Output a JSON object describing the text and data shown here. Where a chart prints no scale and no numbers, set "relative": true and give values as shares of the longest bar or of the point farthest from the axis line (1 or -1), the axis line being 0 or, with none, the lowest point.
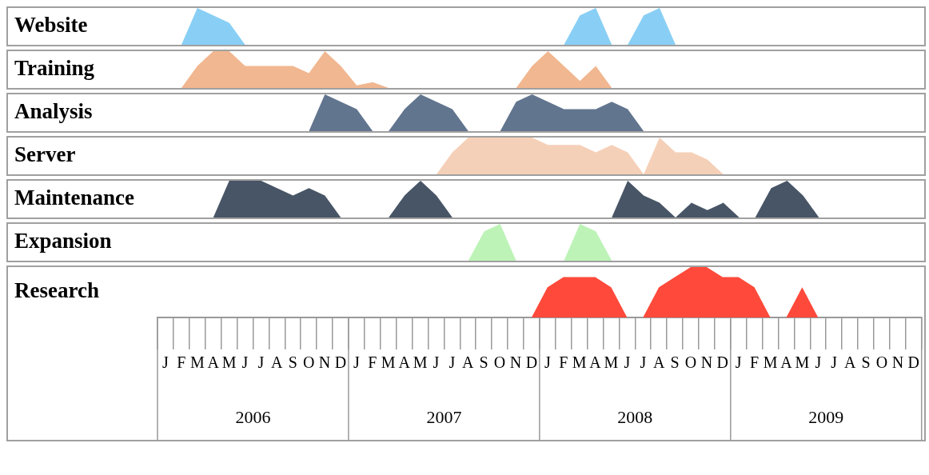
{
  "chart_data": [
    {
      "type": "area",
      "relative": true,
      "tick_labels": false,
      "categories": [
        null,
        null,
        null,
        null,
        null,
        null,
        null,
        null,
        null,
        null,
        null,
        null,
        null,
        null,
        null,
        null,
        null,
        null,
        null,
        null,
        null,
        null,
        null,
        null,
        null,
        null,
        null,
        null,
        null,
        null,
        null,
        null,
        null,
        null,
        null,
        null,
        null,
        null,
        null,
        null,
        null,
        null,
        null,
        null,
        null,
        null,
        null,
        null
      ],
      "series": [
        {
          "name": "Website",
          "color": "#89cff5",
          "values": [
            null,
            0,
            1,
            0.8,
            0.6,
            0,
            0,
            0,
            0,
            0,
            0,
            0,
            0,
            0,
            0,
            0,
            0,
            0,
            0,
            0,
            0,
            0,
            0,
            0,
            0,
            0,
            0.8,
            1,
            0,
            0,
            0.8,
            1,
            0,
            null,
            null,
            null,
            null,
            null,
            null,
            null,
            null,
            null,
            null,
            null,
            null,
            null,
            null,
            null
          ]
        }
      ]
    },
    {
      "type": "area",
      "relative": true,
      "tick_labels": false,
      "categories": [
        null,
        null,
        null,
        null,
        null,
        null,
        null,
        null,
        null,
        null,
        null,
        null,
        null,
        null,
        null,
        null,
        null,
        null,
        null,
        null,
        null,
        null,
        null,
        null,
        null,
        null,
        null,
        null,
        null,
        null,
        null,
        null,
        null,
        null,
        null,
        null,
        null,
        null,
        null,
        null,
        null,
        null,
        null,
        null,
        null,
        null,
        null,
        null
      ],
      "series": [
        {
          "name": "Training",
          "color": "#f1b790",
          "values": [
            null,
            0,
            0.6,
            1,
            1,
            0.6,
            0.6,
            0.6,
            0.6,
            0.4,
            1,
            0.6,
            0.07,
            0.16,
            0,
            0,
            0,
            0,
            0,
            0,
            0,
            0,
            0,
            0.6,
            1,
            0.6,
            0.19,
            0.6,
            0,
            null,
            null,
            null,
            null,
            null,
            null,
            null,
            null,
            null,
            null,
            null,
            null,
            null,
            null,
            null,
            null,
            null,
            null,
            null
          ]
        }
      ]
    },
    {
      "type": "area",
      "relative": true,
      "tick_labels": false,
      "categories": [
        null,
        null,
        null,
        null,
        null,
        null,
        null,
        null,
        null,
        null,
        null,
        null,
        null,
        null,
        null,
        null,
        null,
        null,
        null,
        null,
        null,
        null,
        null,
        null,
        null,
        null,
        null,
        null,
        null,
        null,
        null,
        null,
        null,
        null,
        null,
        null,
        null,
        null,
        null,
        null,
        null,
        null,
        null,
        null,
        null,
        null,
        null,
        null
      ],
      "series": [
        {
          "name": "Analysis",
          "color": "#62758f",
          "values": [
            null,
            null,
            null,
            null,
            null,
            null,
            null,
            null,
            null,
            0,
            1,
            0.8,
            0.6,
            0,
            0,
            0.6,
            1,
            0.8,
            0.6,
            0,
            0,
            0,
            0.8,
            1,
            0.8,
            0.6,
            0.6,
            0.6,
            0.8,
            0.6,
            0,
            null,
            null,
            null,
            null,
            null,
            null,
            null,
            null,
            null,
            null,
            null,
            null,
            null,
            null,
            null,
            null,
            null
          ]
        }
      ]
    },
    {
      "type": "area",
      "relative": true,
      "tick_labels": false,
      "categories": [
        null,
        null,
        null,
        null,
        null,
        null,
        null,
        null,
        null,
        null,
        null,
        null,
        null,
        null,
        null,
        null,
        null,
        null,
        null,
        null,
        null,
        null,
        null,
        null,
        null,
        null,
        null,
        null,
        null,
        null,
        null,
        null,
        null,
        null,
        null,
        null,
        null,
        null,
        null,
        null,
        null,
        null,
        null,
        null,
        null,
        null,
        null,
        null
      ],
      "series": [
        {
          "name": "Server",
          "color": "#f5d0b8",
          "values": [
            null,
            null,
            null,
            null,
            null,
            null,
            null,
            null,
            null,
            null,
            null,
            null,
            null,
            null,
            null,
            null,
            null,
            0,
            0.6,
            1,
            1,
            1,
            1,
            1,
            0.8,
            0.8,
            0.8,
            0.6,
            0.8,
            0.6,
            0,
            1,
            0.6,
            0.6,
            0.4,
            0,
            null,
            null,
            null,
            null,
            null,
            null,
            null,
            null,
            null,
            null,
            null,
            null
          ]
        }
      ]
    },
    {
      "type": "area",
      "relative": true,
      "tick_labels": false,
      "categories": [
        null,
        null,
        null,
        null,
        null,
        null,
        null,
        null,
        null,
        null,
        null,
        null,
        null,
        null,
        null,
        null,
        null,
        null,
        null,
        null,
        null,
        null,
        null,
        null,
        null,
        null,
        null,
        null,
        null,
        null,
        null,
        null,
        null,
        null,
        null,
        null,
        null,
        null,
        null,
        null,
        null,
        null,
        null,
        null,
        null,
        null,
        null,
        null
      ],
      "series": [
        {
          "name": "Maintenance",
          "color": "#485566",
          "values": [
            null,
            null,
            null,
            0,
            1,
            1,
            1,
            0.8,
            0.6,
            0.8,
            0.6,
            0,
            0,
            0,
            0,
            0.6,
            1,
            0.6,
            0,
            0,
            0,
            0,
            0,
            0,
            0,
            0,
            0,
            0,
            0,
            1,
            0.6,
            0.4,
            0,
            0.4,
            0.2,
            0.4,
            0,
            0,
            0.8,
            1,
            0.6,
            0,
            null,
            null,
            null,
            null,
            null,
            null
          ]
        }
      ]
    },
    {
      "type": "area",
      "relative": true,
      "tick_labels": false,
      "categories": [
        null,
        null,
        null,
        null,
        null,
        null,
        null,
        null,
        null,
        null,
        null,
        null,
        null,
        null,
        null,
        null,
        null,
        null,
        null,
        null,
        null,
        null,
        null,
        null,
        null,
        null,
        null,
        null,
        null,
        null,
        null,
        null,
        null,
        null,
        null,
        null,
        null,
        null,
        null,
        null,
        null,
        null,
        null,
        null,
        null,
        null,
        null,
        null
      ],
      "series": [
        {
          "name": "Expansion",
          "color": "#bef3b8",
          "values": [
            null,
            null,
            null,
            null,
            null,
            null,
            null,
            null,
            null,
            null,
            null,
            null,
            null,
            null,
            null,
            null,
            null,
            null,
            null,
            0,
            0.8,
            1,
            0,
            0,
            0,
            0,
            1,
            0.8,
            0,
            null,
            null,
            null,
            null,
            null,
            null,
            null,
            null,
            null,
            null,
            null,
            null,
            null,
            null,
            null,
            null,
            null,
            null,
            null
          ]
        }
      ]
    },
    {
      "type": "area",
      "relative": true,
      "tick_labels": "x",
      "categories": [
        "J",
        "F",
        "M",
        "A",
        "M",
        "J",
        "J",
        "A",
        "S",
        "O",
        "N",
        "D",
        "J",
        "F",
        "M",
        "A",
        "M",
        "J",
        "J",
        "A",
        "S",
        "O",
        "N",
        "D",
        "J",
        "F",
        "M",
        "A",
        "M",
        "J",
        "J",
        "A",
        "S",
        "O",
        "N",
        "D",
        "J",
        "F",
        "M",
        "A",
        "M",
        "J",
        "J",
        "A",
        "S",
        "O",
        "N",
        "D"
      ],
      "series": [
        {
          "name": "Research",
          "color": "#ff4a3b",
          "values": [
            null,
            null,
            null,
            null,
            null,
            null,
            null,
            null,
            null,
            null,
            null,
            null,
            null,
            null,
            null,
            null,
            null,
            null,
            null,
            null,
            null,
            null,
            null,
            0,
            0.6,
            0.8,
            0.8,
            0.8,
            0.6,
            0,
            0,
            0.6,
            0.8,
            1,
            1,
            0.8,
            0.8,
            0.6,
            0,
            0,
            0.6,
            0,
            null,
            null,
            null,
            null,
            null,
            null
          ]
        }
      ],
      "annotations": [
        "2006",
        "2007",
        "2008",
        "2009"
      ]
    }
  ]
}
